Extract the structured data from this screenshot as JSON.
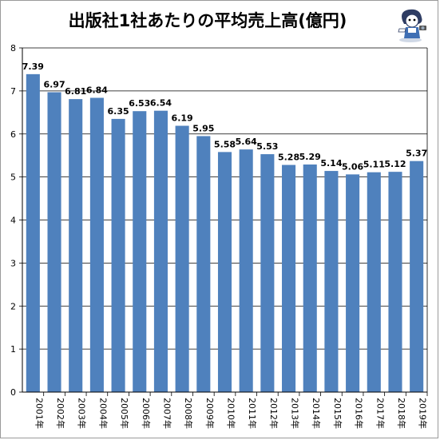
{
  "chart_data": {
    "type": "bar",
    "title": "出版社1社あたりの平均売上高(億円)",
    "categories": [
      "2001年",
      "2002年",
      "2003年",
      "2004年",
      "2005年",
      "2006年",
      "2007年",
      "2008年",
      "2009年",
      "2010年",
      "2011年",
      "2012年",
      "2013年",
      "2014年",
      "2015年",
      "2016年",
      "2017年",
      "2018年",
      "2019年"
    ],
    "values": [
      7.39,
      6.97,
      6.81,
      6.84,
      6.35,
      6.53,
      6.54,
      6.19,
      5.95,
      5.58,
      5.64,
      5.53,
      5.28,
      5.29,
      5.14,
      5.06,
      5.11,
      5.12,
      5.37
    ],
    "data_labels": [
      "7.39",
      "6.97",
      "6.81",
      "6.84",
      "6.35",
      "6.53",
      "6.54",
      "6.19",
      "5.95",
      "5.58",
      "5.64",
      "5.53",
      "5.28",
      "5.29",
      "5.14",
      "5.06",
      "5.11",
      "5.12",
      "5.37"
    ],
    "yticks": [
      "0",
      "1",
      "2",
      "3",
      "4",
      "5",
      "6",
      "7",
      "8"
    ],
    "ylim": [
      0,
      8
    ],
    "xlabel": "",
    "ylabel": "",
    "grid": true,
    "legend": "none",
    "colors": {
      "bar": "#4f81bd",
      "grid": "#000000",
      "frame": "#9a9a9a"
    }
  },
  "mascot": {
    "icon": "reporter-mascot-icon"
  }
}
